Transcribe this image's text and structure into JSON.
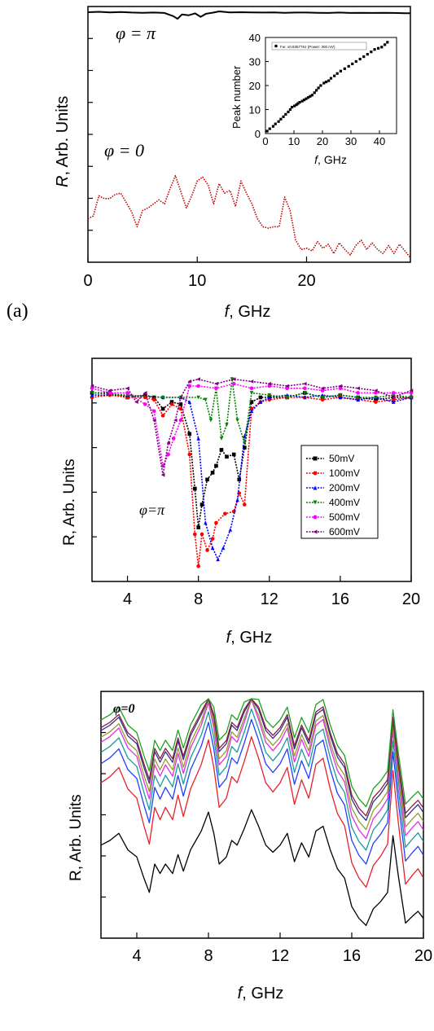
{
  "chart_data": [
    {
      "type": "line",
      "panel_label": "(a)",
      "xlabel_var": "f",
      "xlabel_unit": ", GHz",
      "ylabel_var": "R",
      "ylabel_unit": ", Arb. Units",
      "xlim": [
        0,
        29.5
      ],
      "xticks": [
        0,
        10,
        20
      ],
      "annotations": [
        {
          "text": "φ = π",
          "series": "phi_pi"
        },
        {
          "text": "φ = 0",
          "series": "phi_0"
        }
      ],
      "series": [
        {
          "id": "phi_pi",
          "color": "#000000",
          "x": [
            0,
            1,
            2,
            3,
            4,
            5,
            6,
            7,
            7.8,
            8.2,
            8.6,
            9.2,
            9.8,
            10.3,
            10.8,
            11.5,
            12,
            13,
            14,
            15,
            16,
            17,
            18,
            19,
            20,
            21,
            22,
            23,
            24,
            25,
            26,
            27,
            28,
            29,
            29.5
          ],
          "y": [
            0.98,
            0.99,
            0.975,
            0.985,
            0.97,
            0.965,
            0.97,
            0.96,
            0.88,
            0.81,
            0.92,
            0.9,
            0.95,
            0.86,
            0.94,
            0.97,
            1.0,
            0.975,
            0.98,
            0.975,
            0.97,
            0.975,
            0.965,
            0.97,
            0.97,
            0.965,
            0.96,
            0.97,
            0.96,
            0.965,
            0.96,
            0.965,
            0.96,
            0.955,
            0.955
          ]
        },
        {
          "id": "phi_0",
          "color": "#c00000",
          "x": [
            0,
            0.5,
            1,
            1.5,
            2,
            2.5,
            3,
            3.5,
            4,
            4.5,
            5,
            5.5,
            6,
            6.5,
            7,
            7.5,
            8,
            8.5,
            9,
            9.5,
            10,
            10.5,
            11,
            11.5,
            12,
            12.5,
            13,
            13.5,
            14,
            14.5,
            15,
            15.5,
            16,
            16.5,
            17,
            17.5,
            18,
            18.5,
            19,
            19.5,
            20,
            20.5,
            21,
            21.5,
            22,
            22.5,
            23,
            23.5,
            24,
            24.5,
            25,
            25.5,
            26,
            26.5,
            27,
            27.5,
            28,
            28.5,
            29,
            29.5
          ],
          "y": [
            0.3,
            0.32,
            0.47,
            0.45,
            0.45,
            0.48,
            0.49,
            0.42,
            0.35,
            0.24,
            0.36,
            0.38,
            0.41,
            0.44,
            0.41,
            0.52,
            0.62,
            0.5,
            0.38,
            0.47,
            0.58,
            0.61,
            0.55,
            0.41,
            0.56,
            0.49,
            0.51,
            0.39,
            0.58,
            0.49,
            0.41,
            0.3,
            0.24,
            0.23,
            0.24,
            0.24,
            0.46,
            0.36,
            0.14,
            0.07,
            0.08,
            0.06,
            0.13,
            0.08,
            0.11,
            0.04,
            0.12,
            0.07,
            0.03,
            0.1,
            0.14,
            0.07,
            0.12,
            0.07,
            0.04,
            0.1,
            0.04,
            0.11,
            0.06,
            0.01
          ]
        }
      ],
      "inset": {
        "type": "scatter",
        "xlabel_var": "f",
        "xlabel_unit": ", GHz",
        "ylabel": "Peak number",
        "xlim": [
          0,
          46
        ],
        "ylim": [
          0,
          40
        ],
        "xticks": [
          0,
          10,
          20,
          30,
          40
        ],
        "yticks": [
          0,
          10,
          20,
          30,
          40
        ],
        "legend": "Fur. x0.8357761 (Power: 300 mV)",
        "points_x": [
          0.6,
          1.5,
          2.7,
          3.5,
          4.6,
          5.4,
          6.3,
          7.1,
          8.0,
          8.7,
          9.3,
          10.2,
          10.9,
          11.4,
          12.0,
          12.9,
          13.6,
          14.3,
          15.0,
          15.7,
          16.4,
          17.2,
          17.9,
          18.6,
          19.4,
          20.5,
          21.3,
          22.2,
          23.0,
          24.2,
          25.2,
          26.4,
          27.8,
          29.2,
          30.5,
          31.8,
          33.2,
          34.5,
          35.8,
          37.1,
          38.3,
          39.6,
          40.8,
          41.9,
          42.8
        ],
        "points_y": [
          1,
          2,
          3,
          4,
          5,
          6,
          7,
          8,
          9,
          10,
          11,
          11.5,
          12,
          12.5,
          13,
          13.5,
          14,
          14.5,
          15,
          15.5,
          16,
          17,
          18,
          19,
          20,
          21,
          21.5,
          22,
          23,
          24,
          25,
          26,
          27,
          28,
          29,
          30,
          31,
          32,
          33,
          34,
          35,
          35.5,
          36,
          37,
          38
        ]
      }
    },
    {
      "type": "line",
      "xlabel_var": "f",
      "xlabel_unit": ", GHz",
      "ylabel": "R, Arb. Units",
      "xlim": [
        2,
        20
      ],
      "xticks": [
        4,
        8,
        12,
        16,
        20
      ],
      "annotation": "φ=π",
      "legend": [
        "50mV",
        "100mV",
        "200mV",
        "400mV",
        "500mV",
        "600mV"
      ],
      "series": [
        {
          "name": "50mV",
          "color": "#000000",
          "marker": "square",
          "x": [
            2,
            3,
            4,
            5,
            5.5,
            6,
            6.5,
            7,
            7.5,
            7.8,
            8,
            8.2,
            8.5,
            8.8,
            9,
            9.3,
            9.6,
            10,
            10.3,
            10.6,
            11,
            11.5,
            12,
            13,
            14,
            15,
            16,
            17,
            18,
            19,
            20
          ],
          "y": [
            0.82,
            0.82,
            0.8,
            0.81,
            0.8,
            0.75,
            0.78,
            0.77,
            0.64,
            0.4,
            0.23,
            0.33,
            0.44,
            0.47,
            0.5,
            0.57,
            0.54,
            0.55,
            0.44,
            0.58,
            0.78,
            0.8,
            0.8,
            0.8,
            0.82,
            0.8,
            0.81,
            0.8,
            0.79,
            0.8,
            0.8
          ]
        },
        {
          "name": "100mV",
          "color": "#ff0000",
          "marker": "circle",
          "x": [
            2,
            3,
            4,
            5,
            5.5,
            6,
            6.5,
            7,
            7.5,
            7.8,
            8,
            8.2,
            8.5,
            8.8,
            9,
            9.5,
            10,
            10.3,
            10.6,
            11,
            11.5,
            12,
            13,
            14,
            15,
            16,
            17,
            18,
            19,
            20
          ],
          "y": [
            0.8,
            0.81,
            0.8,
            0.8,
            0.79,
            0.72,
            0.77,
            0.75,
            0.55,
            0.2,
            0.06,
            0.2,
            0.13,
            0.18,
            0.25,
            0.29,
            0.3,
            0.38,
            0.33,
            0.75,
            0.78,
            0.79,
            0.8,
            0.8,
            0.79,
            0.8,
            0.79,
            0.78,
            0.79,
            0.8
          ]
        },
        {
          "name": "200mV",
          "color": "#0000ff",
          "marker": "triangle-up",
          "x": [
            2,
            4,
            6,
            7,
            7.5,
            8,
            8.4,
            8.8,
            9.1,
            9.4,
            9.8,
            10.2,
            10.6,
            11,
            11.5,
            12,
            13,
            14,
            15,
            16,
            17,
            18,
            19,
            20
          ],
          "y": [
            0.81,
            0.81,
            0.8,
            0.8,
            0.78,
            0.62,
            0.25,
            0.14,
            0.09,
            0.14,
            0.22,
            0.35,
            0.63,
            0.74,
            0.78,
            0.8,
            0.81,
            0.8,
            0.81,
            0.8,
            0.79,
            0.8,
            0.78,
            0.8
          ]
        },
        {
          "name": "400mV",
          "color": "#008000",
          "marker": "triangle-down",
          "x": [
            2,
            4,
            6,
            7,
            8,
            8.4,
            8.7,
            9,
            9.3,
            9.6,
            9.9,
            10.2,
            10.6,
            11,
            12,
            13,
            14,
            15,
            16,
            17,
            18,
            19,
            20
          ],
          "y": [
            0.82,
            0.81,
            0.8,
            0.8,
            0.8,
            0.79,
            0.7,
            0.84,
            0.62,
            0.68,
            0.88,
            0.7,
            0.6,
            0.82,
            0.81,
            0.8,
            0.82,
            0.8,
            0.81,
            0.8,
            0.8,
            0.81,
            0.8
          ]
        },
        {
          "name": "500mV",
          "color": "#ff00ff",
          "marker": "circle",
          "x": [
            2,
            3,
            4,
            5,
            5.5,
            6,
            6.3,
            6.6,
            7,
            7.5,
            8,
            9,
            10,
            11,
            12,
            13,
            14,
            15,
            16,
            17,
            18,
            19,
            20
          ],
          "y": [
            0.84,
            0.82,
            0.82,
            0.77,
            0.74,
            0.5,
            0.55,
            0.62,
            0.7,
            0.85,
            0.85,
            0.84,
            0.86,
            0.84,
            0.85,
            0.84,
            0.84,
            0.83,
            0.84,
            0.82,
            0.82,
            0.82,
            0.82
          ]
        },
        {
          "name": "600mV",
          "color": "#800080",
          "marker": "triangle-left",
          "x": [
            2,
            3,
            4,
            4.5,
            5,
            5.5,
            6,
            6.3,
            6.7,
            7,
            7.5,
            8,
            9,
            10,
            11,
            12,
            13,
            14,
            15,
            16,
            17,
            18,
            19,
            20
          ],
          "y": [
            0.85,
            0.83,
            0.84,
            0.78,
            0.82,
            0.7,
            0.46,
            0.6,
            0.7,
            0.8,
            0.87,
            0.88,
            0.86,
            0.88,
            0.87,
            0.86,
            0.85,
            0.86,
            0.84,
            0.85,
            0.84,
            0.83,
            0.8,
            0.83
          ]
        }
      ]
    },
    {
      "type": "line",
      "xlabel_var": "f",
      "xlabel_unit": ", GHz",
      "ylabel": "R, Arb. Units",
      "xlim": [
        2,
        20
      ],
      "xticks": [
        4,
        8,
        12,
        16,
        20
      ],
      "annotation": "φ=0",
      "base_shape": {
        "x": [
          2,
          2.5,
          3,
          3.5,
          4,
          4.4,
          4.7,
          5,
          5.3,
          5.6,
          6,
          6.3,
          6.6,
          7,
          7.3,
          7.6,
          8,
          8.3,
          8.6,
          9,
          9.3,
          9.6,
          10,
          10.4,
          10.8,
          11.2,
          11.6,
          12,
          12.4,
          12.8,
          13.2,
          13.6,
          14,
          14.4,
          14.8,
          15.2,
          15.6,
          16,
          16.4,
          16.8,
          17.2,
          17.6,
          18,
          18.3,
          18.6,
          19,
          19.4,
          19.7,
          20
        ],
        "y": [
          0.38,
          0.4,
          0.43,
          0.36,
          0.33,
          0.24,
          0.18,
          0.3,
          0.26,
          0.3,
          0.26,
          0.34,
          0.27,
          0.36,
          0.4,
          0.44,
          0.52,
          0.43,
          0.3,
          0.33,
          0.4,
          0.38,
          0.45,
          0.53,
          0.46,
          0.38,
          0.35,
          0.38,
          0.43,
          0.31,
          0.39,
          0.33,
          0.44,
          0.46,
          0.36,
          0.28,
          0.24,
          0.12,
          0.07,
          0.04,
          0.11,
          0.14,
          0.18,
          0.42,
          0.25,
          0.05,
          0.08,
          0.1,
          0.07
        ]
      },
      "series": [
        {
          "color": "#000000",
          "offset": 0.0,
          "amp": 1.0
        },
        {
          "color": "#e8202a",
          "offset": 0.15,
          "amp": 1.3
        },
        {
          "color": "#1f3fff",
          "offset": 0.25,
          "amp": 1.25
        },
        {
          "color": "#1a9a9a",
          "offset": 0.31,
          "amp": 1.22
        },
        {
          "color": "#e030e0",
          "offset": 0.36,
          "amp": 1.2
        },
        {
          "color": "#9a9a30",
          "offset": 0.4,
          "amp": 1.15
        },
        {
          "color": "#30308a",
          "offset": 0.44,
          "amp": 1.12
        },
        {
          "color": "#8a2040",
          "offset": 0.46,
          "amp": 1.1
        },
        {
          "color": "#20a020",
          "offset": 0.5,
          "amp": 1.08
        }
      ]
    }
  ]
}
